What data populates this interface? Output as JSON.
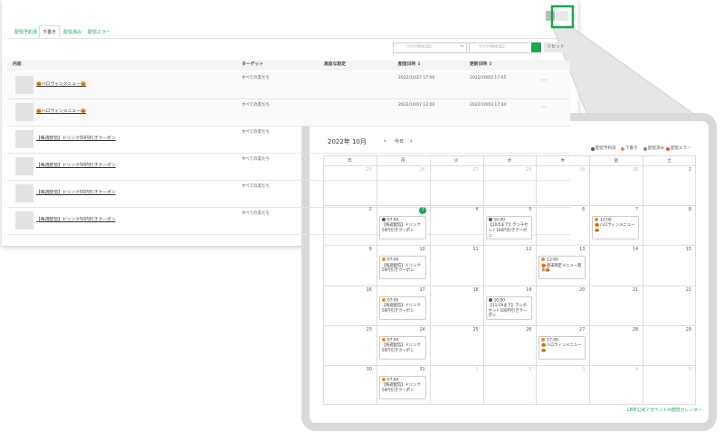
{
  "tabs": [
    "配信予約済",
    "下書き",
    "配信済み",
    "配信エラー"
  ],
  "selected_tab": 1,
  "filter": {
    "start_placeholder": "YYYY/MM/DD",
    "separator": "～",
    "end_placeholder": "YYYY/MM/DD",
    "reset": "リセット"
  },
  "table": {
    "headers": [
      "内容",
      "ターゲット",
      "高度な設定",
      "配信日時 ↕",
      "更新日時 ↕"
    ],
    "rows": [
      [
        "🎃ハロウィンメニュー🎃",
        "すべての友だち",
        "",
        "2022/10/27 17:00",
        "2022/10/03 17:45",
        "…"
      ],
      [
        "🎃ハロウィンメニュー🎃",
        "すべての友だち",
        "",
        "2022/10/07 12:00",
        "2022/10/03 17:44",
        "…"
      ],
      [
        "【毎週配信】ドリンク50円引きクーポン",
        "すべての友だち"
      ],
      [
        "【毎週配信】ドリンク50円引きクーポン",
        "すべての友だち"
      ],
      [
        "【毎週配信】ドリンク50円引きクーポン",
        "すべての友だち"
      ],
      [
        "【毎週配信】ドリンク50円引きクーポン",
        "すべての友だち"
      ]
    ]
  },
  "calendar": {
    "title": "2022年 10月",
    "prev": "‹",
    "today_button": "今日",
    "next": "›",
    "legend": [
      {
        "name": "配信予約済",
        "color": "#4a5775"
      },
      {
        "name": "下書き",
        "color": "#ef8c2d"
      },
      {
        "name": "配信済み",
        "color": "#6f8db8"
      },
      {
        "name": "配信エラー",
        "color": "#e8542f"
      }
    ],
    "weekdays": [
      "日",
      "月",
      "火",
      "水",
      "木",
      "金",
      "土"
    ],
    "weeks": [
      [
        {
          "day": 25,
          "outside": true
        },
        {
          "day": 26,
          "outside": true
        },
        {
          "day": 27,
          "outside": true
        },
        {
          "day": 28,
          "outside": true
        },
        {
          "day": 29,
          "outside": true
        },
        {
          "day": 30,
          "outside": true
        },
        {
          "day": 1
        }
      ],
      [
        {
          "day": 2
        },
        {
          "day": 3,
          "today": true,
          "events": [
            {
              "time": "07:00",
              "title": "【毎週配信】ドリンク50円引きクーポン",
              "color": "#4a5775"
            }
          ]
        },
        {
          "day": 4
        },
        {
          "day": 5,
          "events": [
            {
              "time": "10:00",
              "title": "【10/5まで】ランチセット100円引きクーポン",
              "color": "#4a5775"
            }
          ]
        },
        {
          "day": 6
        },
        {
          "day": 7,
          "events": [
            {
              "time": "12:00",
              "title": "🎃ハロウィンメニュー🎃",
              "color": "#ef8c2d"
            }
          ]
        },
        {
          "day": 8
        }
      ],
      [
        {
          "day": 9
        },
        {
          "day": 10,
          "events": [
            {
              "time": "07:00",
              "title": "【毎週配信】ドリンク50円引きクーポン",
              "color": "#ef8c2d"
            }
          ]
        },
        {
          "day": 11
        },
        {
          "day": 12
        },
        {
          "day": 13,
          "events": [
            {
              "time": "12:00",
              "title": "🎃週末限定メニュー発表🎃",
              "color": "#ef8c2d"
            }
          ]
        },
        {
          "day": 14
        },
        {
          "day": 15
        }
      ],
      [
        {
          "day": 16
        },
        {
          "day": 17,
          "events": [
            {
              "time": "07:00",
              "title": "【毎週配信】ドリンク50円引きクーポン",
              "color": "#ef8c2d"
            }
          ]
        },
        {
          "day": 18
        },
        {
          "day": 19,
          "events": [
            {
              "time": "10:00",
              "title": "【11/19まで】ランチセット100円引きクーポン",
              "color": "#4a5775"
            }
          ]
        },
        {
          "day": 20
        },
        {
          "day": 21
        },
        {
          "day": 22
        }
      ],
      [
        {
          "day": 23
        },
        {
          "day": 24,
          "events": [
            {
              "time": "07:00",
              "title": "【毎週配信】ドリンク50円引きクーポン",
              "color": "#ef8c2d"
            }
          ]
        },
        {
          "day": 25
        },
        {
          "day": 26
        },
        {
          "day": 27,
          "events": [
            {
              "time": "17:00",
              "title": "🎃ハロウィンメニュー🎃",
              "color": "#ef8c2d"
            }
          ]
        },
        {
          "day": 28
        },
        {
          "day": 29
        }
      ],
      [
        {
          "day": 30
        },
        {
          "day": 31,
          "events": [
            {
              "time": "07:00",
              "title": "【毎週配信】ドリンク50円引きクーポン",
              "color": "#ef8c2d"
            }
          ]
        },
        {
          "day": 1,
          "outside": true
        },
        {
          "day": 2,
          "outside": true
        },
        {
          "day": 3,
          "outside": true
        },
        {
          "day": 4,
          "outside": true
        },
        {
          "day": 5,
          "outside": true
        }
      ]
    ],
    "footer_link": "LINE公式アカウントの配信カレンダー"
  }
}
